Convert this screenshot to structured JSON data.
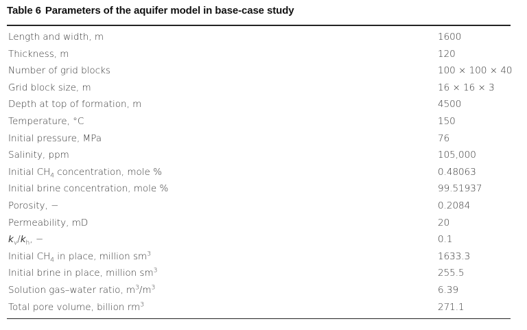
{
  "table": {
    "title": {
      "label": "Table 6",
      "text": "Parameters of the aquifer model in base-case study"
    },
    "rows": [
      {
        "label": [
          "Length and width, m"
        ],
        "value": "1600"
      },
      {
        "label": [
          "Thickness, m"
        ],
        "value": "120"
      },
      {
        "label": [
          "Number of grid blocks"
        ],
        "value": "100 × 100 × 40"
      },
      {
        "label": [
          "Grid block size, m"
        ],
        "value": "16 × 16 × 3"
      },
      {
        "label": [
          "Depth at top of formation, m"
        ],
        "value": "4500"
      },
      {
        "label": [
          "Temperature, °C"
        ],
        "value": "150"
      },
      {
        "label": [
          "Initial pressure, MPa"
        ],
        "value": "76"
      },
      {
        "label": [
          "Salinity, ppm"
        ],
        "value": "105,000"
      },
      {
        "label": [
          "Initial CH",
          {
            "sub": "4"
          },
          " concentration, mole %"
        ],
        "value": "0.48063"
      },
      {
        "label": [
          "Initial brine concentration, mole %"
        ],
        "value": "99.51937"
      },
      {
        "label": [
          "Porosity, −"
        ],
        "value": "0.2084"
      },
      {
        "label": [
          "Permeability, mD"
        ],
        "value": "20"
      },
      {
        "label": [
          {
            "i": "k"
          },
          {
            "sub": "v"
          },
          "/",
          {
            "i": "k"
          },
          {
            "sub": "h"
          },
          ", −"
        ],
        "value": "0.1"
      },
      {
        "label": [
          "Initial CH",
          {
            "sub": "4"
          },
          " in place, million sm",
          {
            "sup": "3"
          }
        ],
        "value": "1633.3"
      },
      {
        "label": [
          "Initial brine in place, million sm",
          {
            "sup": "3"
          }
        ],
        "value": "255.5"
      },
      {
        "label": [
          "Solution gas–water ratio, m",
          {
            "sup": "3"
          },
          "/m",
          {
            "sup": "3"
          }
        ],
        "value": "6.39"
      },
      {
        "label": [
          "Total pore volume, billion rm",
          {
            "sup": "3"
          }
        ],
        "value": "271.1"
      }
    ]
  }
}
